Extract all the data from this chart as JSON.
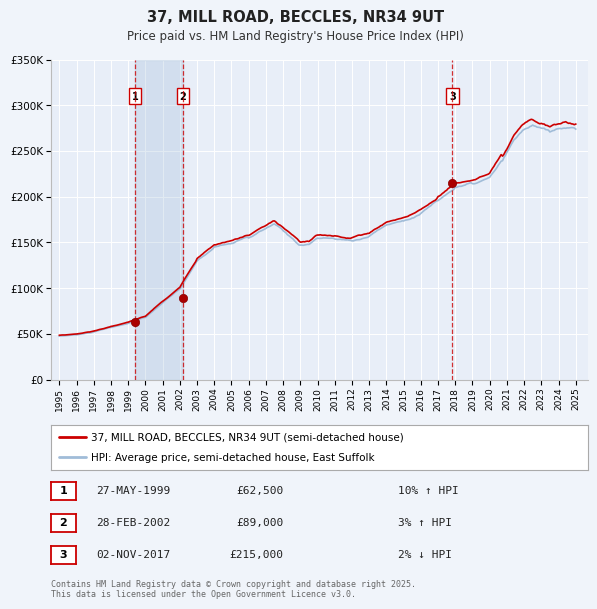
{
  "title": "37, MILL ROAD, BECCLES, NR34 9UT",
  "subtitle": "Price paid vs. HM Land Registry's House Price Index (HPI)",
  "hpi_label": "HPI: Average price, semi-detached house, East Suffolk",
  "property_label": "37, MILL ROAD, BECCLES, NR34 9UT (semi-detached house)",
  "footer": "Contains HM Land Registry data © Crown copyright and database right 2025.\nThis data is licensed under the Open Government Licence v3.0.",
  "sale_points": [
    {
      "year": 1999.41,
      "price": 62500,
      "label": "1",
      "date": "27-MAY-1999",
      "pct": "10%",
      "dir": "↑"
    },
    {
      "year": 2002.16,
      "price": 89000,
      "label": "2",
      "date": "28-FEB-2002",
      "pct": "3%",
      "dir": "↑"
    },
    {
      "year": 2017.84,
      "price": 215000,
      "label": "3",
      "date": "02-NOV-2017",
      "pct": "2%",
      "dir": "↓"
    }
  ],
  "vline_years": [
    1999.41,
    2002.16,
    2017.84
  ],
  "ylim": [
    0,
    350000
  ],
  "yticks": [
    0,
    50000,
    100000,
    150000,
    200000,
    250000,
    300000,
    350000
  ],
  "ytick_labels": [
    "£0",
    "£50K",
    "£100K",
    "£150K",
    "£200K",
    "£250K",
    "£300K",
    "£350K"
  ],
  "xlim_start": 1994.5,
  "xlim_end": 2025.7,
  "hpi_color": "#a0bcd8",
  "property_color": "#cc0000",
  "vline_color": "#cc0000",
  "bg_color": "#f0f4fa",
  "plot_bg": "#e8eef8",
  "grid_color": "#ffffff"
}
